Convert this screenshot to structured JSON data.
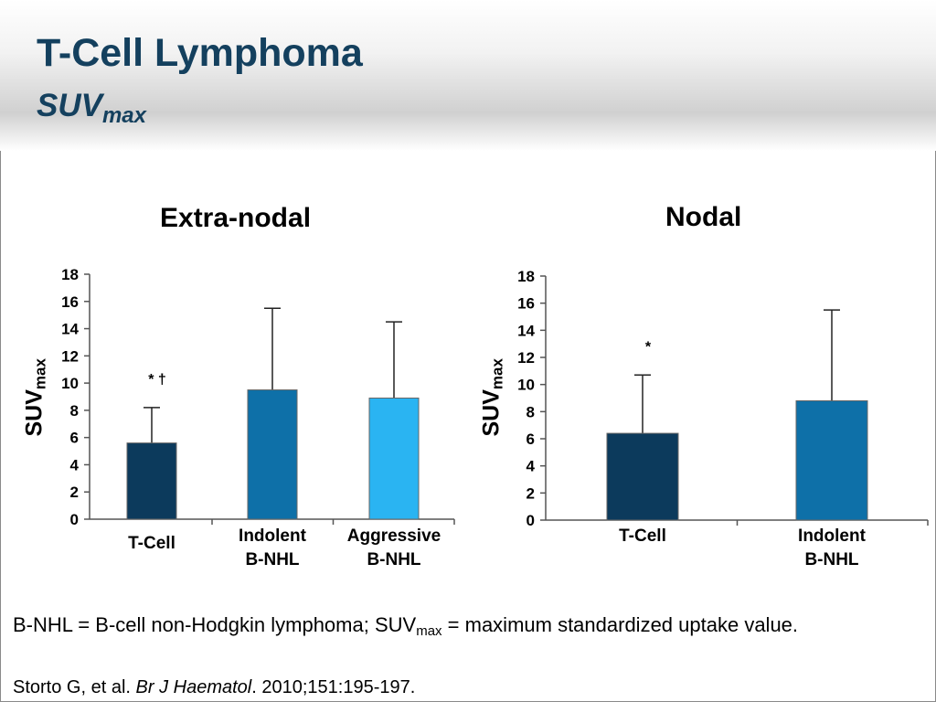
{
  "header": {
    "title": "T-Cell Lymphoma",
    "subtitle_main": "SUV",
    "subtitle_sub": "max"
  },
  "colors": {
    "title": "#14405e",
    "tcell": "#0c3a5c",
    "indolent": "#0e70a8",
    "aggressive": "#2ab4f2"
  },
  "chart_data": [
    {
      "type": "bar",
      "title": "Extra-nodal",
      "ylabel_main": "SUV",
      "ylabel_sub": "max",
      "ylim": [
        0,
        18
      ],
      "yticks": [
        0,
        2,
        4,
        6,
        8,
        10,
        12,
        14,
        16,
        18
      ],
      "grid": false,
      "categories": [
        "T-Cell",
        "Indolent\nB-NHL",
        "Aggressive\nB-NHL"
      ],
      "values": [
        5.6,
        9.5,
        8.9
      ],
      "error_upper": [
        8.2,
        15.5,
        14.5
      ],
      "annotations": [
        "* †",
        "",
        ""
      ],
      "colors": [
        "#0c3a5c",
        "#0e70a8",
        "#2ab4f2"
      ]
    },
    {
      "type": "bar",
      "title": "Nodal",
      "ylabel_main": "SUV",
      "ylabel_sub": "max",
      "ylim": [
        0,
        18
      ],
      "yticks": [
        0,
        2,
        4,
        6,
        8,
        10,
        12,
        14,
        16,
        18
      ],
      "grid": false,
      "categories": [
        "T-Cell",
        "Indolent\nB-NHL"
      ],
      "values": [
        6.4,
        8.8
      ],
      "error_upper": [
        10.7,
        15.5
      ],
      "annotations": [
        "*",
        ""
      ],
      "colors": [
        "#0c3a5c",
        "#0e70a8"
      ]
    }
  ],
  "footnote": {
    "part1": "B-NHL = B-cell non-Hodgkin lymphoma; SUV",
    "sub": "max",
    "part2": " = maximum standardized uptake value."
  },
  "citation": {
    "authors": "Storto G, et al. ",
    "journal": "Br J Haematol",
    "details": ". 2010;151:195-197."
  }
}
